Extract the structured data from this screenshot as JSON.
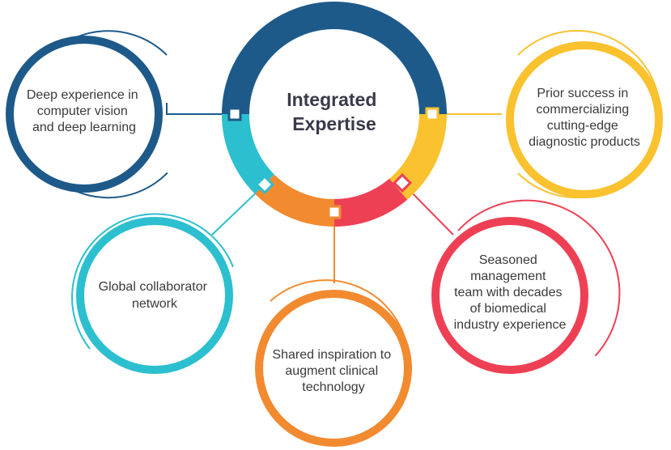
{
  "center": {
    "lines": [
      "Integrated",
      "Expertise"
    ]
  },
  "nodes": [
    {
      "id": "computer-vision",
      "color": "#1d5a8a",
      "lines": [
        "Deep experience in",
        "computer vision",
        "and deep learning"
      ]
    },
    {
      "id": "diagnostic-products",
      "color": "#f9c22e",
      "lines": [
        "Prior success in",
        "commercializing",
        "cutting-edge",
        "diagnostic products"
      ]
    },
    {
      "id": "management-team",
      "color": "#ee4055",
      "lines": [
        "Seasoned",
        "management",
        "team with decades",
        "of biomedical",
        "industry experience"
      ]
    },
    {
      "id": "clinical-technology",
      "color": "#f28a30",
      "lines": [
        "Shared inspiration to",
        "augment clinical",
        "technology"
      ]
    },
    {
      "id": "collaborator-network",
      "color": "#2cbfcf",
      "lines": [
        "Global collaborator",
        "network"
      ]
    }
  ]
}
